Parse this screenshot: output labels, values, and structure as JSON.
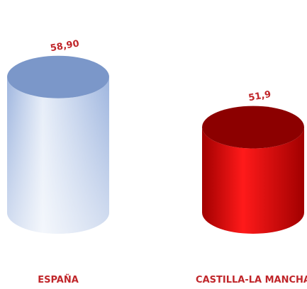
{
  "chart_data": {
    "type": "bar",
    "style": "3d-cylinder",
    "categories": [
      "ESPAÑA",
      "CASTILLA-LA MANCHA"
    ],
    "values": [
      58.9,
      51.9
    ],
    "value_labels": [
      "58,90",
      "51,9"
    ],
    "title": "",
    "xlabel": "",
    "ylabel": "",
    "grid": false,
    "legend": "none",
    "colors": {
      "bar_0_top": "#7b97c9",
      "bar_0_body_light": "#e6edf8",
      "bar_0_body_dark": "#9fb6df",
      "bar_1_top": "#8c0000",
      "bar_1_body_light": "#ff1a1a",
      "bar_1_body_dark": "#a10000",
      "label": "#c0262a"
    }
  }
}
